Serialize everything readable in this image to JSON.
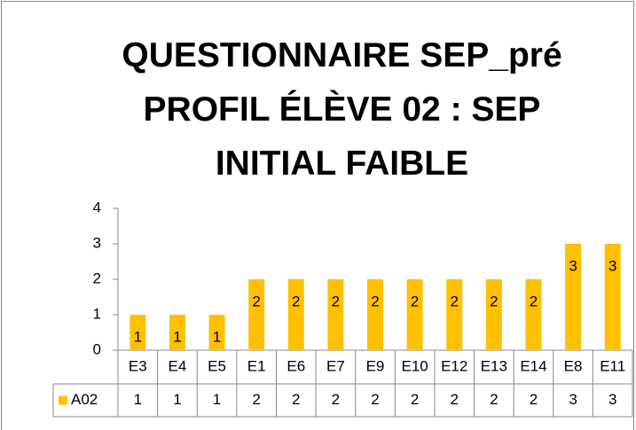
{
  "chart_data": {
    "type": "bar",
    "title": "QUESTIONNAIRE SEP_pré\nPROFIL ÉLÈVE 02 : SEP\nINITIAL FAIBLE",
    "categories": [
      "E3",
      "E4",
      "E5",
      "E1",
      "E6",
      "E7",
      "E9",
      "E10",
      "E12",
      "E13",
      "E14",
      "E8",
      "E11"
    ],
    "series": [
      {
        "name": "A02",
        "color": "#FFC000",
        "values": [
          1,
          1,
          1,
          2,
          2,
          2,
          2,
          2,
          2,
          2,
          2,
          3,
          3
        ]
      }
    ],
    "ylim": [
      0,
      4
    ],
    "yticks": [
      0,
      1,
      2,
      3,
      4
    ],
    "data_table": true,
    "data_labels": true
  }
}
